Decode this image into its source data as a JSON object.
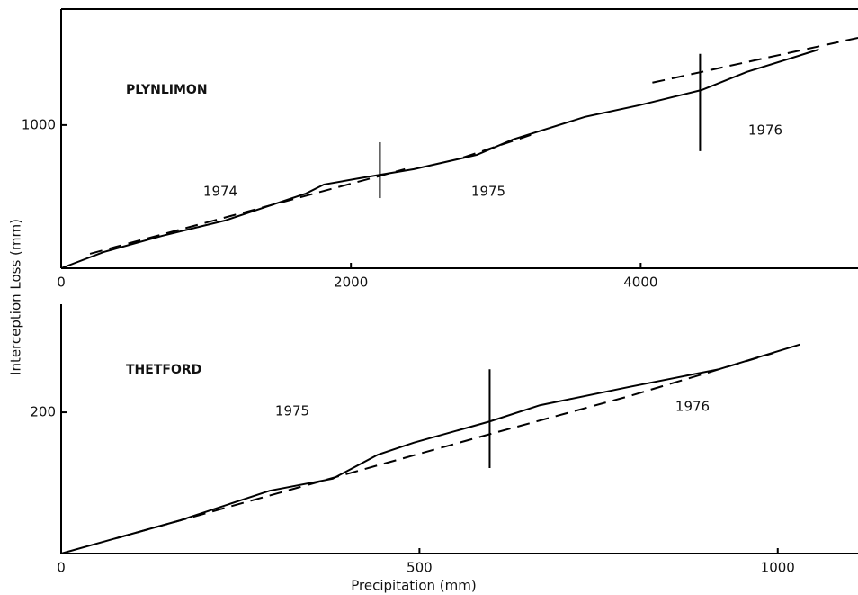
{
  "labels": {
    "y": "Interception Loss (mm)",
    "x": "Precipitation (mm)"
  },
  "chart_data": [
    {
      "type": "line",
      "site": "PLYNLIMON",
      "xlim": [
        0,
        5500
      ],
      "ylim": [
        0,
        1810
      ],
      "xticks": [
        0,
        2000,
        4000
      ],
      "yticks": [
        1000
      ],
      "series": [
        {
          "style": "solid",
          "color": "#000000",
          "x": [
            0,
            292,
            695,
            1130,
            1690,
            1814,
            2062,
            2435,
            2870,
            3118,
            3615,
            3988,
            4422,
            4733,
            5230
          ],
          "values": [
            0,
            113,
            226,
            333,
            522,
            585,
            629,
            692,
            792,
            899,
            1057,
            1138,
            1245,
            1371,
            1528
          ]
        },
        {
          "style": "dashed",
          "color": "#000000",
          "x": [
            199,
            2373,
            2500,
            2776,
            3242,
            3600,
            4081,
            5503
          ],
          "values": [
            101,
            692,
            null,
            774,
            931,
            null,
            1296,
            1610
          ]
        }
      ],
      "dividers": [
        {
          "x": 2200,
          "y": [
            490,
            880
          ]
        },
        {
          "x": 4410,
          "y": [
            818,
            1497
          ]
        }
      ],
      "periods": [
        "1974",
        "1975",
        "1976"
      ]
    },
    {
      "type": "line",
      "site": "THETFORD",
      "xlim": [
        0,
        1112
      ],
      "ylim": [
        0,
        353
      ],
      "xticks": [
        0,
        500,
        1000
      ],
      "yticks": [
        200
      ],
      "series": [
        {
          "style": "solid",
          "color": "#000000",
          "x": [
            0,
            166,
            291,
            379,
            442,
            492,
            598,
            668,
            793,
            918,
            1031
          ],
          "values": [
            0,
            47,
            89,
            106,
            140,
            157,
            187,
            210,
            236,
            261,
            296
          ]
        },
        {
          "style": "dashed",
          "color": "#000000",
          "x": [
            78,
            598,
            793,
            994
          ],
          "values": [
            22,
            169,
            223,
            284
          ]
        }
      ],
      "dividers": [
        {
          "x": 598,
          "y": [
            121,
            261
          ]
        }
      ],
      "periods": [
        "1975",
        "1976"
      ]
    }
  ]
}
